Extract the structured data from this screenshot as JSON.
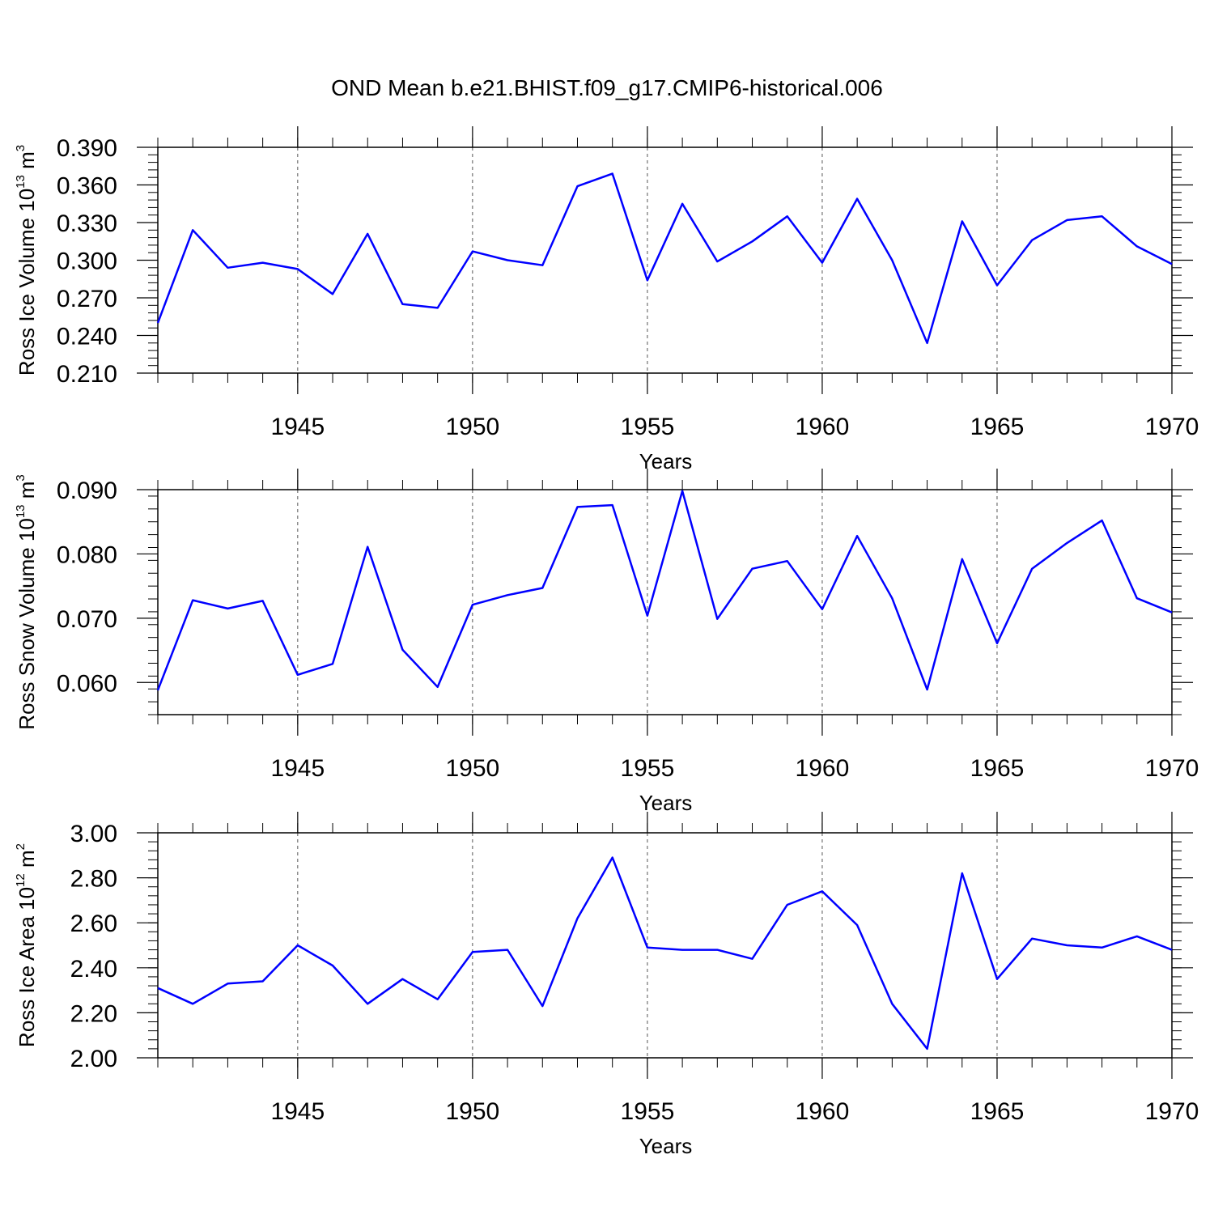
{
  "title": "OND Mean b.e21.BHIST.f09_g17.CMIP6-historical.006",
  "chart_data": [
    {
      "type": "line",
      "xlabel": "Years",
      "ylabel": {
        "text": "Ross Ice Volume 10",
        "exp": "13",
        "unit": " m",
        "unit_exp": "3"
      },
      "xlim": [
        1941,
        1970
      ],
      "ylim": [
        0.21,
        0.39
      ],
      "xticks": [
        1945,
        1950,
        1955,
        1960,
        1965,
        1970
      ],
      "yticks": [
        0.21,
        0.24,
        0.27,
        0.3,
        0.33,
        0.36,
        0.39
      ],
      "ytick_labels": [
        "0.210",
        "0.240",
        "0.270",
        "0.300",
        "0.330",
        "0.360",
        "0.390"
      ],
      "grid_x": [
        1945,
        1950,
        1955,
        1960,
        1965
      ],
      "line_color": "#0000ff",
      "x": [
        1941,
        1942,
        1943,
        1944,
        1945,
        1946,
        1947,
        1948,
        1949,
        1950,
        1951,
        1952,
        1953,
        1954,
        1955,
        1956,
        1957,
        1958,
        1959,
        1960,
        1961,
        1962,
        1963,
        1964,
        1965,
        1966,
        1967,
        1968,
        1969,
        1970
      ],
      "values": [
        0.25,
        0.324,
        0.294,
        0.298,
        0.293,
        0.273,
        0.321,
        0.265,
        0.262,
        0.307,
        0.3,
        0.296,
        0.359,
        0.369,
        0.284,
        0.345,
        0.299,
        0.315,
        0.335,
        0.298,
        0.349,
        0.3,
        0.234,
        0.331,
        0.28,
        0.316,
        0.332,
        0.335,
        0.311,
        0.297
      ]
    },
    {
      "type": "line",
      "xlabel": "Years",
      "ylabel": {
        "text": "Ross Snow Volume 10",
        "exp": "13",
        "unit": " m",
        "unit_exp": "3"
      },
      "xlim": [
        1941,
        1970
      ],
      "ylim": [
        0.055,
        0.09
      ],
      "xticks": [
        1945,
        1950,
        1955,
        1960,
        1965,
        1970
      ],
      "yticks": [
        0.06,
        0.07,
        0.08,
        0.09
      ],
      "ytick_labels": [
        "0.060",
        "0.070",
        "0.080",
        "0.090"
      ],
      "grid_x": [
        1945,
        1950,
        1955,
        1960,
        1965
      ],
      "line_color": "#0000ff",
      "x": [
        1941,
        1942,
        1943,
        1944,
        1945,
        1946,
        1947,
        1948,
        1949,
        1950,
        1951,
        1952,
        1953,
        1954,
        1955,
        1956,
        1957,
        1958,
        1959,
        1960,
        1961,
        1962,
        1963,
        1964,
        1965,
        1966,
        1967,
        1968,
        1969,
        1970
      ],
      "values": [
        0.0588,
        0.0728,
        0.0715,
        0.0727,
        0.0612,
        0.0629,
        0.0811,
        0.0651,
        0.0593,
        0.0721,
        0.0736,
        0.0747,
        0.0873,
        0.0876,
        0.0704,
        0.0898,
        0.0699,
        0.0777,
        0.0789,
        0.0714,
        0.0828,
        0.0731,
        0.0589,
        0.0792,
        0.0661,
        0.0777,
        0.0817,
        0.0852,
        0.0731,
        0.0709
      ]
    },
    {
      "type": "line",
      "xlabel": "Years",
      "ylabel": {
        "text": "Ross Ice Area 10",
        "exp": "12",
        "unit": " m",
        "unit_exp": "2"
      },
      "xlim": [
        1941,
        1970
      ],
      "ylim": [
        2.0,
        3.0
      ],
      "xticks": [
        1945,
        1950,
        1955,
        1960,
        1965,
        1970
      ],
      "yticks": [
        2.0,
        2.2,
        2.4,
        2.6,
        2.8,
        3.0
      ],
      "ytick_labels": [
        "2.00",
        "2.20",
        "2.40",
        "2.60",
        "2.80",
        "3.00"
      ],
      "grid_x": [
        1945,
        1950,
        1955,
        1960,
        1965
      ],
      "line_color": "#0000ff",
      "x": [
        1941,
        1942,
        1943,
        1944,
        1945,
        1946,
        1947,
        1948,
        1949,
        1950,
        1951,
        1952,
        1953,
        1954,
        1955,
        1956,
        1957,
        1958,
        1959,
        1960,
        1961,
        1962,
        1963,
        1964,
        1965,
        1966,
        1967,
        1968,
        1969,
        1970
      ],
      "values": [
        2.31,
        2.24,
        2.33,
        2.34,
        2.5,
        2.41,
        2.24,
        2.35,
        2.26,
        2.47,
        2.48,
        2.23,
        2.62,
        2.89,
        2.49,
        2.48,
        2.48,
        2.44,
        2.68,
        2.74,
        2.59,
        2.24,
        2.04,
        2.82,
        2.35,
        2.53,
        2.5,
        2.49,
        2.54,
        2.48
      ]
    }
  ]
}
